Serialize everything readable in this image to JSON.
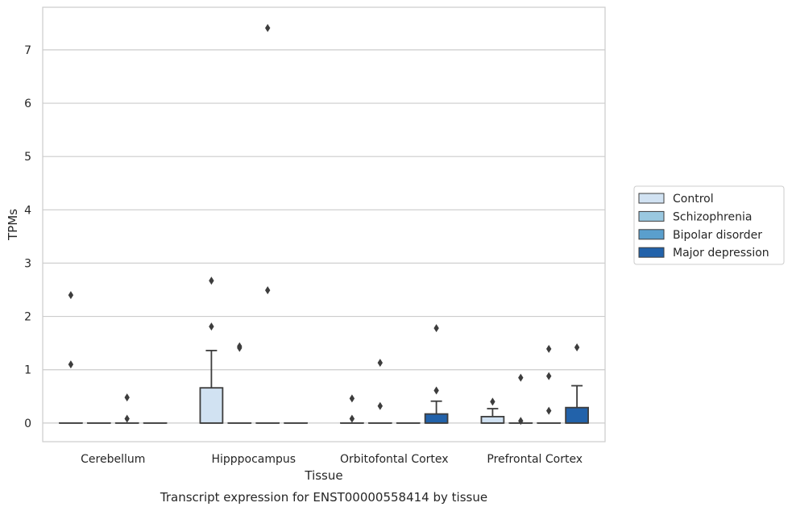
{
  "caption": "Transcript expression for ENST00000558414 by tissue",
  "chart_data": {
    "type": "box",
    "xlabel": "Tissue",
    "ylabel": "TPMs",
    "ylim": [
      -0.35,
      7.8
    ],
    "yticks": [
      0,
      1,
      2,
      3,
      4,
      5,
      6,
      7
    ],
    "grid": "horizontal",
    "legend_position": "right",
    "categories": [
      "Cerebellum",
      "Hipppocampus",
      "Orbitofontal Cortex",
      "Prefrontal Cortex"
    ],
    "series": [
      {
        "name": "Control",
        "color": "#d1e2f2"
      },
      {
        "name": "Schizophrenia",
        "color": "#9ac8e0"
      },
      {
        "name": "Bipolar disorder",
        "color": "#5a9fcd"
      },
      {
        "name": "Major depression",
        "color": "#2262aa"
      }
    ],
    "boxes": [
      [
        {
          "q1": 0,
          "median": 0,
          "q3": 0,
          "whislo": 0,
          "whishi": 0,
          "fliers": [
            2.4,
            1.1
          ]
        },
        {
          "q1": 0,
          "median": 0,
          "q3": 0,
          "whislo": 0,
          "whishi": 0,
          "fliers": []
        },
        {
          "q1": 0,
          "median": 0,
          "q3": 0,
          "whislo": 0,
          "whishi": 0,
          "fliers": [
            0.48,
            0.08
          ]
        },
        {
          "q1": 0,
          "median": 0,
          "q3": 0,
          "whislo": 0,
          "whishi": 0,
          "fliers": []
        }
      ],
      [
        {
          "q1": 0,
          "median": 0,
          "q3": 0.66,
          "whislo": 0,
          "whishi": 1.36,
          "fliers": [
            2.67,
            1.81
          ]
        },
        {
          "q1": 0,
          "median": 0,
          "q3": 0,
          "whislo": 0,
          "whishi": 0,
          "fliers": [
            1.44,
            1.41
          ]
        },
        {
          "q1": 0,
          "median": 0,
          "q3": 0,
          "whislo": 0,
          "whishi": 0,
          "fliers": [
            7.41,
            2.49
          ]
        },
        {
          "q1": 0,
          "median": 0,
          "q3": 0,
          "whislo": 0,
          "whishi": 0,
          "fliers": []
        }
      ],
      [
        {
          "q1": 0,
          "median": 0,
          "q3": 0,
          "whislo": 0,
          "whishi": 0,
          "fliers": [
            0.46,
            0.08
          ]
        },
        {
          "q1": 0,
          "median": 0,
          "q3": 0,
          "whislo": 0,
          "whishi": 0,
          "fliers": [
            1.13,
            0.32
          ]
        },
        {
          "q1": 0,
          "median": 0,
          "q3": 0,
          "whislo": 0,
          "whishi": 0,
          "fliers": []
        },
        {
          "q1": 0,
          "median": 0,
          "q3": 0.17,
          "whislo": 0,
          "whishi": 0.41,
          "fliers": [
            1.78,
            0.61
          ]
        }
      ],
      [
        {
          "q1": 0,
          "median": 0,
          "q3": 0.12,
          "whislo": 0,
          "whishi": 0.27,
          "fliers": [
            0.4
          ]
        },
        {
          "q1": 0,
          "median": 0,
          "q3": 0,
          "whislo": 0,
          "whishi": 0,
          "fliers": [
            0.85,
            0.04
          ]
        },
        {
          "q1": 0,
          "median": 0,
          "q3": 0,
          "whislo": 0,
          "whishi": 0,
          "fliers": [
            1.39,
            0.88,
            0.23
          ]
        },
        {
          "q1": 0,
          "median": 0,
          "q3": 0.29,
          "whislo": 0,
          "whishi": 0.7,
          "fliers": [
            1.42
          ]
        }
      ]
    ]
  }
}
